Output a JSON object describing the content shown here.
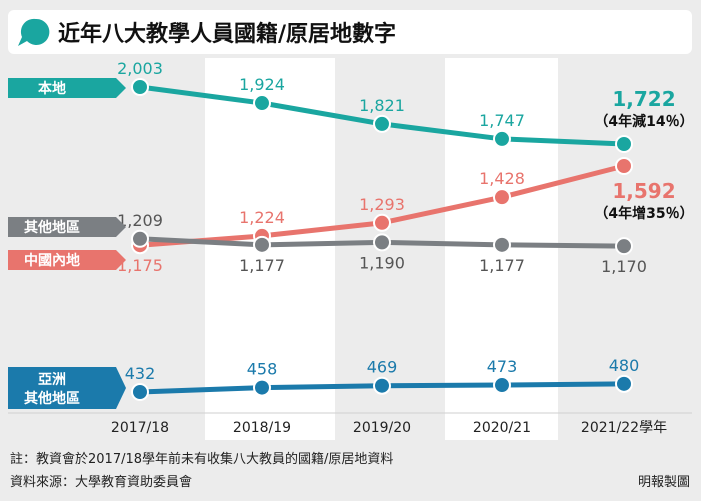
{
  "header": {
    "title": "近年八大教學人員國籍/原居地數字"
  },
  "chart_data": {
    "type": "line",
    "title": "近年八大教學人員國籍/原居地數字",
    "x": [
      "2017/18",
      "2018/19",
      "2019/20",
      "2020/21",
      "2021/22"
    ],
    "x_suffix": "學年",
    "series": [
      {
        "name": "本地",
        "values": [
          2003,
          1924,
          1821,
          1747,
          1722
        ],
        "color": "#1aa6a0",
        "value_labels": [
          "2,003",
          "1,924",
          "1,821",
          "1,747",
          "1,722"
        ],
        "last_note": "（4年減14％）"
      },
      {
        "name": "中國內地",
        "values": [
          1175,
          1224,
          1293,
          1428,
          1592
        ],
        "color": "#e8746d",
        "value_labels": [
          "1,175",
          "1,224",
          "1,293",
          "1,428",
          "1,592"
        ],
        "last_note": "（4年增35％）"
      },
      {
        "name": "其他地區",
        "values": [
          1209,
          1177,
          1190,
          1177,
          1170
        ],
        "color": "#7b7f83",
        "value_labels": [
          "1,209",
          "1,177",
          "1,190",
          "1,177",
          "1,170"
        ]
      },
      {
        "name": "亞洲其他地區",
        "name_lines": [
          "亞洲",
          "其他地區"
        ],
        "values": [
          432,
          458,
          469,
          473,
          480
        ],
        "color": "#1b7aab",
        "value_labels": [
          "432",
          "458",
          "469",
          "473",
          "480"
        ]
      }
    ],
    "legend_placement": "left",
    "grid": false
  },
  "footer": {
    "note": "註：教資會於2017/18學年前未有收集八大教員的國籍/原居地資料",
    "source": "資料來源：大學教育資助委員會",
    "credit": "明報製圖"
  },
  "colors": {
    "background": "#ececec",
    "band": "#ffffff",
    "title_bar": "#ffffff"
  }
}
